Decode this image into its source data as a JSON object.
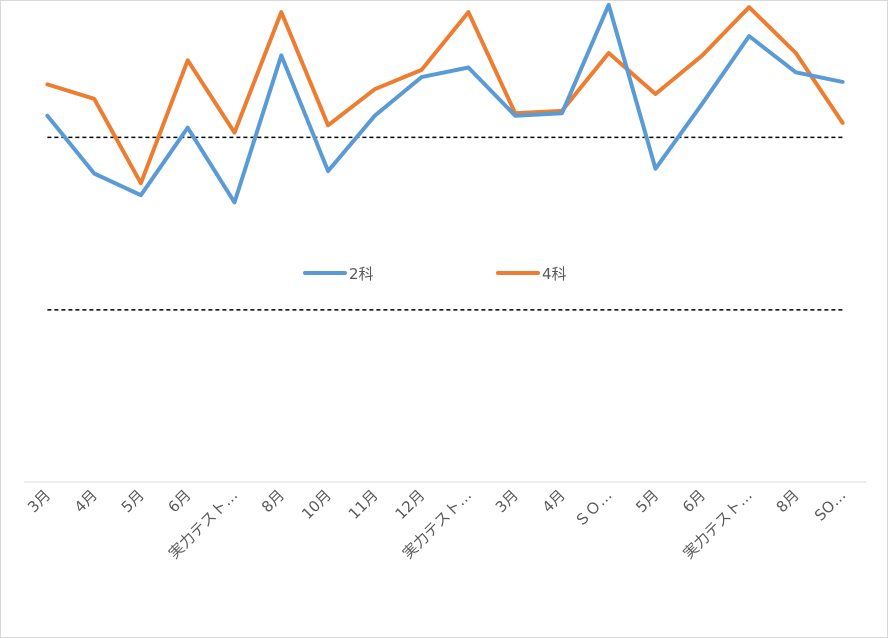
{
  "chart_data": {
    "type": "line",
    "title": "",
    "xlabel": "",
    "ylabel": "",
    "ylim": [
      0,
      100
    ],
    "categories": [
      "3月",
      "4月",
      "5月",
      "6月",
      "実力テスト…",
      "8月",
      "10月",
      "11月",
      "12月",
      "実力テスト…",
      "3月",
      "4月",
      "ＳＯ…",
      "5月",
      "6月",
      "実力テスト…",
      "8月",
      "SO…"
    ],
    "reference_lines": [
      {
        "value": 71.5,
        "style": "dashed",
        "color": "#000000"
      },
      {
        "value": 35.7,
        "style": "dashed",
        "color": "#000000"
      }
    ],
    "series": [
      {
        "name": "2科",
        "color": "#5b9bd5",
        "values": [
          76,
          64,
          59.5,
          73.5,
          58,
          88.5,
          64.5,
          76,
          84,
          86,
          76,
          76.5,
          99,
          65,
          78.5,
          92.5,
          85,
          83
        ]
      },
      {
        "name": "4科",
        "color": "#ed7d31",
        "values": [
          82.5,
          79.5,
          62,
          87.5,
          72.5,
          97.5,
          74,
          81.5,
          85.5,
          97.5,
          76.5,
          77,
          89,
          80.5,
          88.5,
          98.5,
          89,
          74.5
        ]
      }
    ],
    "legend": {
      "position": "center",
      "items": [
        "2科",
        "4科"
      ]
    }
  }
}
